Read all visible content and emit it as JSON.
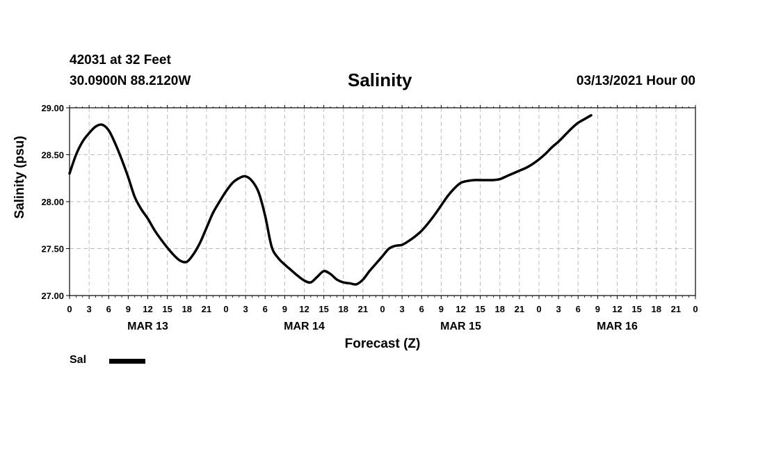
{
  "header": {
    "station": "42031 at 32 Feet",
    "position": "30.0900N 88.2120W",
    "run_time": "03/13/2021 Hour 00"
  },
  "chart_data": {
    "type": "line",
    "title": "Salinity",
    "xlabel": "Forecast (Z)",
    "ylabel": "Salinity (psu)",
    "x_unit": "forecast hour",
    "xlim": [
      0,
      96
    ],
    "ylim": [
      27.0,
      29.0
    ],
    "yticks": [
      "27.00",
      "27.50",
      "28.00",
      "28.50",
      "29.00"
    ],
    "xtick_hours": [
      0,
      3,
      6,
      9,
      12,
      15,
      18,
      21,
      24,
      27,
      30,
      33,
      36,
      39,
      42,
      45,
      48,
      51,
      54,
      57,
      60,
      63,
      66,
      69,
      72,
      75,
      78,
      81,
      84,
      87,
      90,
      93,
      96
    ],
    "xtick_labels": [
      "0",
      "3",
      "6",
      "9",
      "12",
      "15",
      "18",
      "21",
      "0",
      "3",
      "6",
      "9",
      "12",
      "15",
      "18",
      "21",
      "0",
      "3",
      "6",
      "9",
      "12",
      "15",
      "18",
      "21",
      "0",
      "3",
      "6",
      "9",
      "12",
      "15",
      "18",
      "21",
      "0"
    ],
    "day_labels": [
      {
        "label": "MAR 13",
        "hour": 12
      },
      {
        "label": "MAR 14",
        "hour": 36
      },
      {
        "label": "MAR 15",
        "hour": 60
      },
      {
        "label": "MAR 16",
        "hour": 84
      }
    ],
    "grid": true,
    "legend_position": "bottom-left",
    "series": [
      {
        "name": "Sal",
        "color": "#000000",
        "points": [
          [
            0,
            28.3
          ],
          [
            1,
            28.5
          ],
          [
            2,
            28.64
          ],
          [
            3,
            28.73
          ],
          [
            4,
            28.8
          ],
          [
            5,
            28.82
          ],
          [
            6,
            28.76
          ],
          [
            7,
            28.62
          ],
          [
            8,
            28.45
          ],
          [
            9,
            28.26
          ],
          [
            10,
            28.05
          ],
          [
            11,
            27.92
          ],
          [
            12,
            27.82
          ],
          [
            13,
            27.7
          ],
          [
            14,
            27.6
          ],
          [
            15,
            27.51
          ],
          [
            16,
            27.43
          ],
          [
            17,
            27.37
          ],
          [
            18,
            27.36
          ],
          [
            19,
            27.44
          ],
          [
            20,
            27.56
          ],
          [
            21,
            27.72
          ],
          [
            22,
            27.88
          ],
          [
            23,
            28.0
          ],
          [
            24,
            28.11
          ],
          [
            25,
            28.2
          ],
          [
            26,
            28.25
          ],
          [
            27,
            28.27
          ],
          [
            28,
            28.22
          ],
          [
            29,
            28.1
          ],
          [
            30,
            27.85
          ],
          [
            31,
            27.52
          ],
          [
            32,
            27.4
          ],
          [
            33,
            27.33
          ],
          [
            34,
            27.27
          ],
          [
            35,
            27.21
          ],
          [
            36,
            27.16
          ],
          [
            37,
            27.14
          ],
          [
            38,
            27.2
          ],
          [
            39,
            27.26
          ],
          [
            40,
            27.23
          ],
          [
            41,
            27.17
          ],
          [
            42,
            27.14
          ],
          [
            43,
            27.13
          ],
          [
            44,
            27.12
          ],
          [
            45,
            27.17
          ],
          [
            46,
            27.26
          ],
          [
            47,
            27.34
          ],
          [
            48,
            27.42
          ],
          [
            49,
            27.5
          ],
          [
            50,
            27.53
          ],
          [
            51,
            27.54
          ],
          [
            52,
            27.58
          ],
          [
            53,
            27.63
          ],
          [
            54,
            27.69
          ],
          [
            55,
            27.77
          ],
          [
            56,
            27.86
          ],
          [
            57,
            27.96
          ],
          [
            58,
            28.06
          ],
          [
            59,
            28.14
          ],
          [
            60,
            28.2
          ],
          [
            61,
            28.22
          ],
          [
            62,
            28.23
          ],
          [
            63,
            28.23
          ],
          [
            64,
            28.23
          ],
          [
            65,
            28.23
          ],
          [
            66,
            28.24
          ],
          [
            67,
            28.27
          ],
          [
            68,
            28.3
          ],
          [
            69,
            28.33
          ],
          [
            70,
            28.36
          ],
          [
            71,
            28.4
          ],
          [
            72,
            28.45
          ],
          [
            73,
            28.51
          ],
          [
            74,
            28.58
          ],
          [
            75,
            28.64
          ],
          [
            76,
            28.71
          ],
          [
            77,
            28.78
          ],
          [
            78,
            28.84
          ],
          [
            79,
            28.88
          ],
          [
            80,
            28.92
          ]
        ]
      }
    ]
  }
}
